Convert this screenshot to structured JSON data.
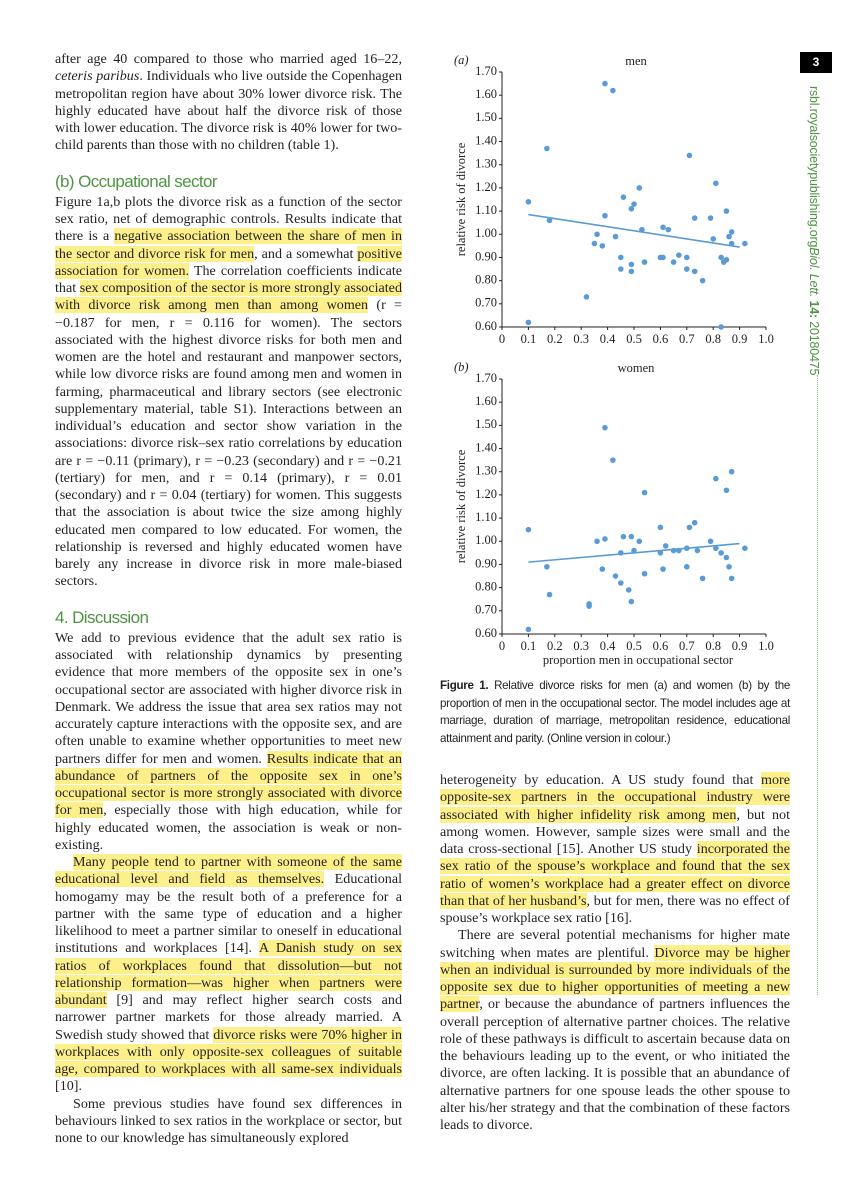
{
  "page_number": "3",
  "sidebar": {
    "url": "rsbl.royalsocietypublishing.org",
    "journal": "Biol. Lett.",
    "volume": "14:",
    "article": "20180475"
  },
  "sections": [
    {
      "paragraphs": [
        [
          {
            "text": "after age 40 compared to those who married aged 16–22, "
          },
          {
            "text": "ceteris paribus",
            "italic": true
          },
          {
            "text": ". Individuals who live outside the Copenhagen metropolitan region have about 30% lower divorce risk. The highly educated have about half the divorce risk of those with lower education. The divorce risk is 40% lower for two-child parents than those with no children (table 1)."
          }
        ]
      ]
    },
    {
      "heading": "(b) Occupational sector",
      "paragraphs": [
        [
          {
            "text": "Figure 1a,b plots the divorce risk as a function of the sector sex ratio, net of demographic controls. Results indicate that there is a "
          },
          {
            "text": "negative association between the share of men in the sector and divorce risk for men",
            "highlight": true
          },
          {
            "text": ", and a somewhat "
          },
          {
            "text": "positive association for women.",
            "highlight": true
          },
          {
            "text": " The correlation coefficients indicate that "
          },
          {
            "text": "sex composition of the sector is more strongly associated with divorce risk among men than among women",
            "highlight": true
          },
          {
            "text": " (r = −0.187 for men, r = 0.116 for women). The sectors associated with the highest divorce risks for both men and women are the hotel and restaurant and manpower sectors, while low divorce risks are found among men and women in farming, pharmaceutical and library sectors (see electronic supplementary material, table S1). Interactions between an individual’s education and sector show variation in the associations: divorce risk–sex ratio correlations by education are r = −0.11 (primary), r = −0.23 (secondary) and r = −0.21 (tertiary) for men, and r = 0.14 (primary), r = 0.01 (secondary) and r = 0.04 (tertiary) for women. This suggests that the association is about twice the size among highly educated men compared to low educated. For women, the relationship is reversed and highly educated women have barely any increase in divorce risk in more male-biased sectors."
          }
        ]
      ]
    },
    {
      "heading": "4. Discussion",
      "paragraphs": [
        [
          {
            "text": "We add to previous evidence that the adult sex ratio is associated with relationship dynamics by presenting evidence that more members of the opposite sex in one’s occupational sector are associated with higher divorce risk in Denmark. We address the issue that area sex ratios may not accurately capture interactions with the opposite sex, and are often unable to examine whether opportunities to meet new partners differ for men and women. "
          },
          {
            "text": "Results indicate that an abundance of partners of the opposite sex in one’s occupational sector is more strongly associated with divorce for men",
            "highlight": true
          },
          {
            "text": ", especially those with high education, while for highly educated women, the association is weak or non-existing."
          }
        ],
        [
          {
            "text": "Many people tend to partner with someone of the same educational level and field as themselves.",
            "highlight": true
          },
          {
            "text": " Educational homogamy may be the result both of a preference for a partner with the same type of education and a higher likelihood to meet a partner similar to oneself in educational institutions and workplaces [14]. "
          },
          {
            "text": "A Danish study on sex ratios of workplaces found that dissolution—but not relationship formation—was higher when partners were abundant",
            "highlight": true
          },
          {
            "text": " [9] and may reflect higher search costs and narrower partner markets for those already married. A Swedish study showed that "
          },
          {
            "text": "divorce risks were 70% higher in workplaces with only opposite-sex colleagues of suitable age, compared to workplaces with all same-sex individuals",
            "highlight": true
          },
          {
            "text": " [10]."
          }
        ],
        [
          {
            "text": "Some previous studies have found sex differences in behaviours linked to sex ratios in the workplace or sector, but none to our knowledge has simultaneously explored"
          }
        ]
      ]
    }
  ],
  "right_column": {
    "paragraphs": [
      [
        {
          "text": "heterogeneity by education. A US study found that "
        },
        {
          "text": "more opposite-sex partners in the occupational industry were associated with higher infidelity risk among men",
          "highlight": true
        },
        {
          "text": ", but not among women. However, sample sizes were small and the data cross-sectional [15]. Another US study "
        },
        {
          "text": "incorporated the sex ratio of the spouse’s workplace and found that the sex ratio of women’s workplace had a greater effect on divorce than that of her husband’s",
          "highlight": true
        },
        {
          "text": ", but for men, there was no effect of spouse’s workplace sex ratio [16]."
        }
      ],
      [
        {
          "text": "There are several potential mechanisms for higher mate switching when mates are plentiful. "
        },
        {
          "text": "Divorce may be higher when an individual is surrounded by more individuals of the opposite sex due to higher opportunities of meeting a new partner",
          "highlight": true
        },
        {
          "text": ", or because the abundance of partners influences the overall perception of alternative partner choices. The relative role of these pathways is difficult to ascertain because data on the behaviours leading up to the event, or who initiated the divorce, are often lacking. It is possible that an abundance of alternative partners for one spouse leads the other spouse to alter his/her strategy and that the combination of these factors leads to divorce."
        }
      ]
    ]
  },
  "figure": {
    "caption_label": "Figure 1.",
    "caption": " Relative divorce risks for men (a) and women (b) by the proportion of men in the occupational sector. The model includes age at marriage, duration of marriage, metropolitan residence, educational attainment and parity. (Online version in colour.)"
  },
  "chart_data": [
    {
      "type": "scatter",
      "panel_label": "(a)",
      "title": "men",
      "y_label": "relative risk of divorce",
      "x": [
        0.1,
        0.1,
        0.17,
        0.18,
        0.32,
        0.35,
        0.36,
        0.38,
        0.39,
        0.39,
        0.42,
        0.43,
        0.45,
        0.45,
        0.46,
        0.49,
        0.49,
        0.5,
        0.49,
        0.52,
        0.53,
        0.54,
        0.6,
        0.61,
        0.61,
        0.63,
        0.65,
        0.67,
        0.7,
        0.7,
        0.71,
        0.73,
        0.73,
        0.76,
        0.79,
        0.8,
        0.81,
        0.83,
        0.84,
        0.85,
        0.85,
        0.86,
        0.87,
        0.87,
        0.83,
        0.92
      ],
      "values": [
        1.14,
        0.62,
        1.37,
        1.06,
        0.73,
        0.96,
        1.0,
        0.95,
        1.08,
        1.65,
        1.62,
        0.99,
        0.9,
        0.85,
        1.16,
        1.11,
        0.84,
        1.13,
        0.87,
        1.2,
        1.02,
        0.88,
        0.9,
        0.9,
        1.03,
        1.02,
        0.88,
        0.91,
        0.9,
        0.85,
        1.34,
        1.07,
        0.84,
        0.8,
        1.07,
        0.98,
        1.22,
        0.9,
        0.88,
        0.89,
        1.1,
        0.99,
        1.01,
        0.96,
        0.6,
        0.96
      ],
      "color": "#5b9bd5",
      "trendline": {
        "x": [
          0.1,
          0.9
        ],
        "values": [
          1.085,
          0.945
        ]
      },
      "xlim": [
        0,
        1
      ],
      "ylim": [
        0.6,
        1.7
      ],
      "xticks": [
        0,
        0.1,
        0.2,
        0.3,
        0.4,
        0.5,
        0.6,
        0.7,
        0.8,
        0.9,
        {
          "value": 1,
          "label": "1.0"
        }
      ],
      "yticks": [
        {
          "value": 0.6,
          "label": "0.60"
        },
        {
          "value": 0.7,
          "label": "0.70"
        },
        {
          "value": 0.8,
          "label": "0.80"
        },
        {
          "value": 0.9,
          "label": "0.90"
        },
        {
          "value": 1.0,
          "label": "1.00"
        },
        {
          "value": 1.1,
          "label": "1.10"
        },
        {
          "value": 1.2,
          "label": "1.20"
        },
        {
          "value": 1.3,
          "label": "1.30"
        },
        {
          "value": 1.4,
          "label": "1.40"
        },
        {
          "value": 1.5,
          "label": "1.50"
        },
        {
          "value": 1.6,
          "label": "1.60"
        },
        {
          "value": 1.7,
          "label": "1.70"
        }
      ],
      "grid": false
    },
    {
      "type": "scatter",
      "panel_label": "(b)",
      "title": "women",
      "y_label": "relative risk of divorce",
      "x_label": "proportion men in occupational sector",
      "x": [
        0.1,
        0.1,
        0.17,
        0.18,
        0.33,
        0.33,
        0.36,
        0.38,
        0.39,
        0.39,
        0.42,
        0.43,
        0.45,
        0.45,
        0.46,
        0.48,
        0.49,
        0.49,
        0.5,
        0.52,
        0.54,
        0.54,
        0.6,
        0.6,
        0.61,
        0.62,
        0.65,
        0.67,
        0.7,
        0.7,
        0.71,
        0.73,
        0.74,
        0.76,
        0.79,
        0.81,
        0.81,
        0.83,
        0.85,
        0.85,
        0.86,
        0.87,
        0.87,
        0.92
      ],
      "values": [
        1.05,
        0.62,
        0.89,
        0.77,
        0.73,
        0.72,
        1.0,
        0.88,
        1.01,
        1.49,
        1.35,
        0.85,
        0.82,
        0.95,
        1.02,
        0.79,
        1.02,
        0.74,
        0.96,
        1.0,
        1.21,
        0.86,
        0.95,
        1.06,
        0.88,
        0.98,
        0.96,
        0.96,
        0.97,
        0.89,
        1.06,
        1.08,
        0.96,
        0.84,
        1.0,
        0.97,
        1.27,
        0.95,
        0.93,
        1.22,
        0.89,
        1.3,
        0.84,
        0.97
      ],
      "color": "#5b9bd5",
      "trendline": {
        "x": [
          0.1,
          0.9
        ],
        "values": [
          0.91,
          0.99
        ]
      },
      "xlim": [
        0,
        1
      ],
      "ylim": [
        0.6,
        1.7
      ],
      "xticks": [
        0,
        0.1,
        0.2,
        0.3,
        0.4,
        0.5,
        0.6,
        0.7,
        0.8,
        0.9,
        {
          "value": 1,
          "label": "1.0"
        }
      ],
      "yticks": [
        {
          "value": 0.6,
          "label": "0.60"
        },
        {
          "value": 0.7,
          "label": "0.70"
        },
        {
          "value": 0.8,
          "label": "0.80"
        },
        {
          "value": 0.9,
          "label": "0.90"
        },
        {
          "value": 1.0,
          "label": "1.00"
        },
        {
          "value": 1.1,
          "label": "1.10"
        },
        {
          "value": 1.2,
          "label": "1.20"
        },
        {
          "value": 1.3,
          "label": "1.30"
        },
        {
          "value": 1.4,
          "label": "1.40"
        },
        {
          "value": 1.5,
          "label": "1.50"
        },
        {
          "value": 1.6,
          "label": "1.60"
        },
        {
          "value": 1.7,
          "label": "1.70"
        }
      ],
      "grid": false
    }
  ]
}
